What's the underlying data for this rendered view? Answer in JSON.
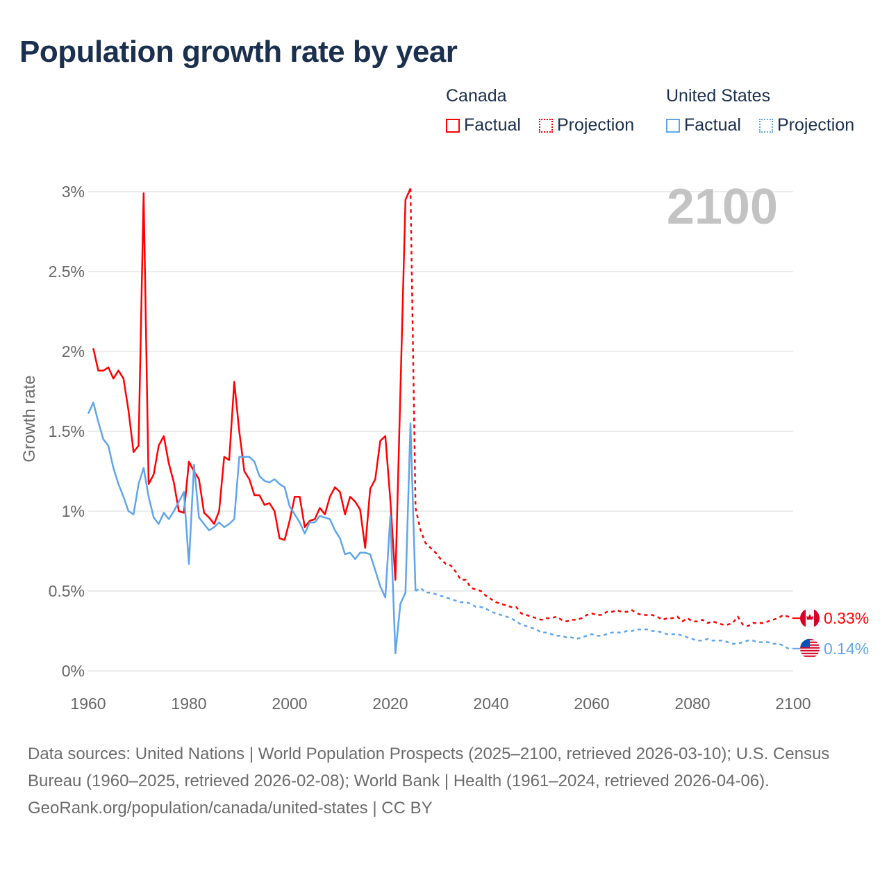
{
  "title": "Population growth rate by year",
  "legend": {
    "groups": [
      {
        "name": "Canada",
        "factual": "Factual",
        "projection": "Projection",
        "color": "#ff0000"
      },
      {
        "name": "United States",
        "factual": "Factual",
        "projection": "Projection",
        "color": "#5fa5ea"
      }
    ]
  },
  "footer": {
    "sources": "Data sources: United Nations | World Population Prospects (2025–2100, retrieved 2026-03-10); U.S. Census Bureau (1960–2025, retrieved 2026-02-08); World Bank | Health (1961–2024, retrieved 2026-04-06).",
    "credit": "GeoRank.org/population/canada/united-states | CC BY"
  },
  "chart_data": {
    "type": "line",
    "title": "Population growth rate by year",
    "ylabel": "Growth rate",
    "xlabel": "",
    "year_overlay": "2100",
    "xlim": [
      1960,
      2100
    ],
    "ylim": [
      0,
      3
    ],
    "x_ticks": [
      "1960",
      "1980",
      "2000",
      "2020",
      "2040",
      "2060",
      "2080",
      "2100"
    ],
    "y_ticks": [
      {
        "v": 0,
        "label": "0%"
      },
      {
        "v": 0.5,
        "label": "0.5%"
      },
      {
        "v": 1,
        "label": "1%"
      },
      {
        "v": 1.5,
        "label": "1.5%"
      },
      {
        "v": 2,
        "label": "2%"
      },
      {
        "v": 2.5,
        "label": "2.5%"
      },
      {
        "v": 3,
        "label": "3%"
      }
    ],
    "grid": true,
    "legend_position": "top-right",
    "series": [
      {
        "name": "Canada Factual",
        "color": "#ff0000",
        "dashed": false,
        "start_year": 1961,
        "values": [
          2.02,
          1.88,
          1.88,
          1.9,
          1.83,
          1.88,
          1.83,
          1.63,
          1.37,
          1.41,
          2.99,
          1.17,
          1.23,
          1.41,
          1.47,
          1.3,
          1.18,
          1.0,
          0.99,
          1.31,
          1.25,
          1.2,
          0.99,
          0.96,
          0.92,
          1.0,
          1.34,
          1.32,
          1.81,
          1.5,
          1.25,
          1.2,
          1.1,
          1.1,
          1.04,
          1.05,
          1.0,
          0.83,
          0.82,
          0.94,
          1.09,
          1.09,
          0.9,
          0.94,
          0.95,
          1.02,
          0.98,
          1.09,
          1.15,
          1.12,
          0.98,
          1.09,
          1.06,
          1.01,
          0.77,
          1.14,
          1.2,
          1.44,
          1.47,
          1.07,
          0.57,
          1.75,
          2.95,
          3.02
        ]
      },
      {
        "name": "Canada Projection",
        "color": "#ff0000",
        "dashed": true,
        "start_year": 2024,
        "values": [
          3.02,
          1.02,
          0.88,
          0.8,
          0.77,
          0.74,
          0.7,
          0.67,
          0.66,
          0.62,
          0.57,
          0.57,
          0.52,
          0.51,
          0.5,
          0.47,
          0.45,
          0.43,
          0.42,
          0.41,
          0.4,
          0.4,
          0.36,
          0.35,
          0.34,
          0.33,
          0.32,
          0.33,
          0.33,
          0.34,
          0.32,
          0.31,
          0.32,
          0.32,
          0.33,
          0.35,
          0.36,
          0.35,
          0.35,
          0.37,
          0.37,
          0.38,
          0.37,
          0.37,
          0.38,
          0.36,
          0.35,
          0.35,
          0.35,
          0.34,
          0.32,
          0.33,
          0.33,
          0.34,
          0.31,
          0.33,
          0.31,
          0.31,
          0.32,
          0.3,
          0.31,
          0.3,
          0.29,
          0.29,
          0.3,
          0.34,
          0.29,
          0.28,
          0.3,
          0.3,
          0.3,
          0.31,
          0.32,
          0.33,
          0.35,
          0.34,
          0.33
        ]
      },
      {
        "name": "United States Factual",
        "color": "#5fa5ea",
        "dashed": false,
        "start_year": 1960,
        "values": [
          1.61,
          1.68,
          1.56,
          1.45,
          1.41,
          1.27,
          1.17,
          1.09,
          1.0,
          0.98,
          1.17,
          1.27,
          1.09,
          0.96,
          0.92,
          0.99,
          0.95,
          1.0,
          1.06,
          1.12,
          0.67,
          1.29,
          0.96,
          0.92,
          0.88,
          0.9,
          0.93,
          0.9,
          0.92,
          0.95,
          1.34,
          1.34,
          1.34,
          1.31,
          1.22,
          1.19,
          1.18,
          1.2,
          1.17,
          1.15,
          1.03,
          0.98,
          0.93,
          0.86,
          0.93,
          0.93,
          0.97,
          0.96,
          0.95,
          0.88,
          0.83,
          0.73,
          0.74,
          0.7,
          0.74,
          0.74,
          0.73,
          0.63,
          0.53,
          0.46,
          0.97,
          0.11,
          0.42,
          0.49,
          1.55,
          0.5
        ]
      },
      {
        "name": "United States Projection",
        "color": "#5fa5ea",
        "dashed": true,
        "start_year": 2025,
        "values": [
          0.5,
          0.52,
          0.49,
          0.49,
          0.48,
          0.47,
          0.46,
          0.45,
          0.44,
          0.43,
          0.43,
          0.42,
          0.4,
          0.4,
          0.39,
          0.37,
          0.36,
          0.35,
          0.34,
          0.33,
          0.31,
          0.29,
          0.28,
          0.27,
          0.26,
          0.24,
          0.24,
          0.23,
          0.22,
          0.22,
          0.21,
          0.21,
          0.2,
          0.21,
          0.22,
          0.23,
          0.22,
          0.22,
          0.23,
          0.24,
          0.24,
          0.24,
          0.25,
          0.25,
          0.26,
          0.26,
          0.26,
          0.25,
          0.25,
          0.24,
          0.23,
          0.23,
          0.23,
          0.22,
          0.21,
          0.2,
          0.19,
          0.19,
          0.2,
          0.19,
          0.19,
          0.19,
          0.18,
          0.17,
          0.17,
          0.18,
          0.19,
          0.19,
          0.18,
          0.18,
          0.18,
          0.17,
          0.17,
          0.16,
          0.14,
          0.14
        ]
      }
    ],
    "end_labels": [
      {
        "country": "Canada",
        "label": "0.33%",
        "value": 0.33,
        "color": "#ff0000",
        "flag": "canada-flag-icon"
      },
      {
        "country": "United States",
        "label": "0.14%",
        "value": 0.14,
        "color": "#5fa5ea",
        "flag": "us-flag-icon"
      }
    ]
  }
}
